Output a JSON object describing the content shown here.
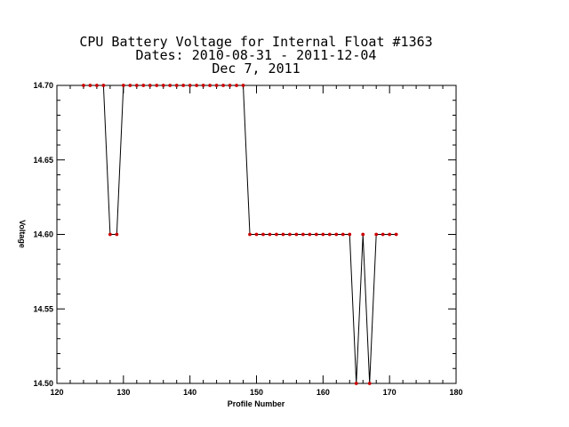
{
  "chart_data": {
    "type": "line",
    "title_lines": [
      "CPU Battery Voltage for Internal Float #1363",
      "Dates:  2010-08-31 -  2011-12-04",
      "Dec  7, 2011"
    ],
    "xlabel": "Profile Number",
    "ylabel": "Voltage",
    "xlim": [
      120,
      180
    ],
    "ylim": [
      14.5,
      14.7
    ],
    "x_ticks": [
      120,
      130,
      140,
      150,
      160,
      170,
      180
    ],
    "x_tick_labels": [
      "120",
      "130",
      "140",
      "150",
      "160",
      "170",
      "180"
    ],
    "y_ticks": [
      14.5,
      14.55,
      14.6,
      14.65,
      14.7
    ],
    "y_tick_labels": [
      "14.50",
      "14.55",
      "14.60",
      "14.65",
      "14.70"
    ],
    "grid": false,
    "line_color": "#000000",
    "marker_color": "#cc0000",
    "series": [
      {
        "x": [
          124,
          125,
          126,
          127,
          128,
          129,
          130,
          131,
          132,
          133,
          134,
          135,
          136,
          137,
          138,
          139,
          140,
          141,
          142,
          143,
          144,
          145,
          146,
          147,
          148,
          149,
          150,
          151,
          152,
          153,
          154,
          155,
          156,
          157,
          158,
          159,
          160,
          161,
          162,
          163,
          164,
          165,
          166,
          167,
          168,
          169,
          170,
          171
        ],
        "values": [
          14.7,
          14.7,
          14.7,
          14.7,
          14.6,
          14.6,
          14.7,
          14.7,
          14.7,
          14.7,
          14.7,
          14.7,
          14.7,
          14.7,
          14.7,
          14.7,
          14.7,
          14.7,
          14.7,
          14.7,
          14.7,
          14.7,
          14.7,
          14.7,
          14.7,
          14.6,
          14.6,
          14.6,
          14.6,
          14.6,
          14.6,
          14.6,
          14.6,
          14.6,
          14.6,
          14.6,
          14.6,
          14.6,
          14.6,
          14.6,
          14.6,
          14.5,
          14.6,
          14.5,
          14.6,
          14.6,
          14.6,
          14.6
        ]
      }
    ]
  }
}
